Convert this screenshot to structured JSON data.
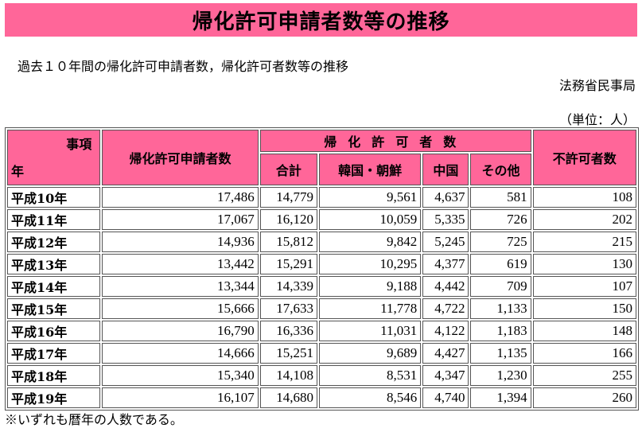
{
  "title": "帰化許可申請者数等の推移",
  "subtitle": "過去１０年間の帰化許可申請者数，帰化許可者数等の推移",
  "publisher": "法務省民事局",
  "unit": "（単位：人）",
  "table": {
    "corner_top": "事項",
    "corner_bottom": "年",
    "col_applicants": "帰化許可申請者数",
    "group_permitted": "帰化許可者数",
    "col_total": "合計",
    "col_korea": "韓国・朝鮮",
    "col_china": "中国",
    "col_other": "その他",
    "col_rejected": "不許可者数",
    "rows": [
      {
        "year": "平成10年",
        "applicants": "17,486",
        "total": "14,779",
        "korea": "9,561",
        "china": "4,637",
        "other": "581",
        "rejected": "108"
      },
      {
        "year": "平成11年",
        "applicants": "17,067",
        "total": "16,120",
        "korea": "10,059",
        "china": "5,335",
        "other": "726",
        "rejected": "202"
      },
      {
        "year": "平成12年",
        "applicants": "14,936",
        "total": "15,812",
        "korea": "9,842",
        "china": "5,245",
        "other": "725",
        "rejected": "215"
      },
      {
        "year": "平成13年",
        "applicants": "13,442",
        "total": "15,291",
        "korea": "10,295",
        "china": "4,377",
        "other": "619",
        "rejected": "130"
      },
      {
        "year": "平成14年",
        "applicants": "13,344",
        "total": "14,339",
        "korea": "9,188",
        "china": "4,442",
        "other": "709",
        "rejected": "107"
      },
      {
        "year": "平成15年",
        "applicants": "15,666",
        "total": "17,633",
        "korea": "11,778",
        "china": "4,722",
        "other": "1,133",
        "rejected": "150"
      },
      {
        "year": "平成16年",
        "applicants": "16,790",
        "total": "16,336",
        "korea": "11,031",
        "china": "4,122",
        "other": "1,183",
        "rejected": "148"
      },
      {
        "year": "平成17年",
        "applicants": "14,666",
        "total": "15,251",
        "korea": "9,689",
        "china": "4,427",
        "other": "1,135",
        "rejected": "166"
      },
      {
        "year": "平成18年",
        "applicants": "15,340",
        "total": "14,108",
        "korea": "8,531",
        "china": "4,347",
        "other": "1,230",
        "rejected": "255"
      },
      {
        "year": "平成19年",
        "applicants": "16,107",
        "total": "14,680",
        "korea": "8,546",
        "china": "4,740",
        "other": "1,394",
        "rejected": "260"
      }
    ]
  },
  "footnote": "※いずれも暦年の人数である。",
  "colors": {
    "header_bg": "#ff6699"
  }
}
